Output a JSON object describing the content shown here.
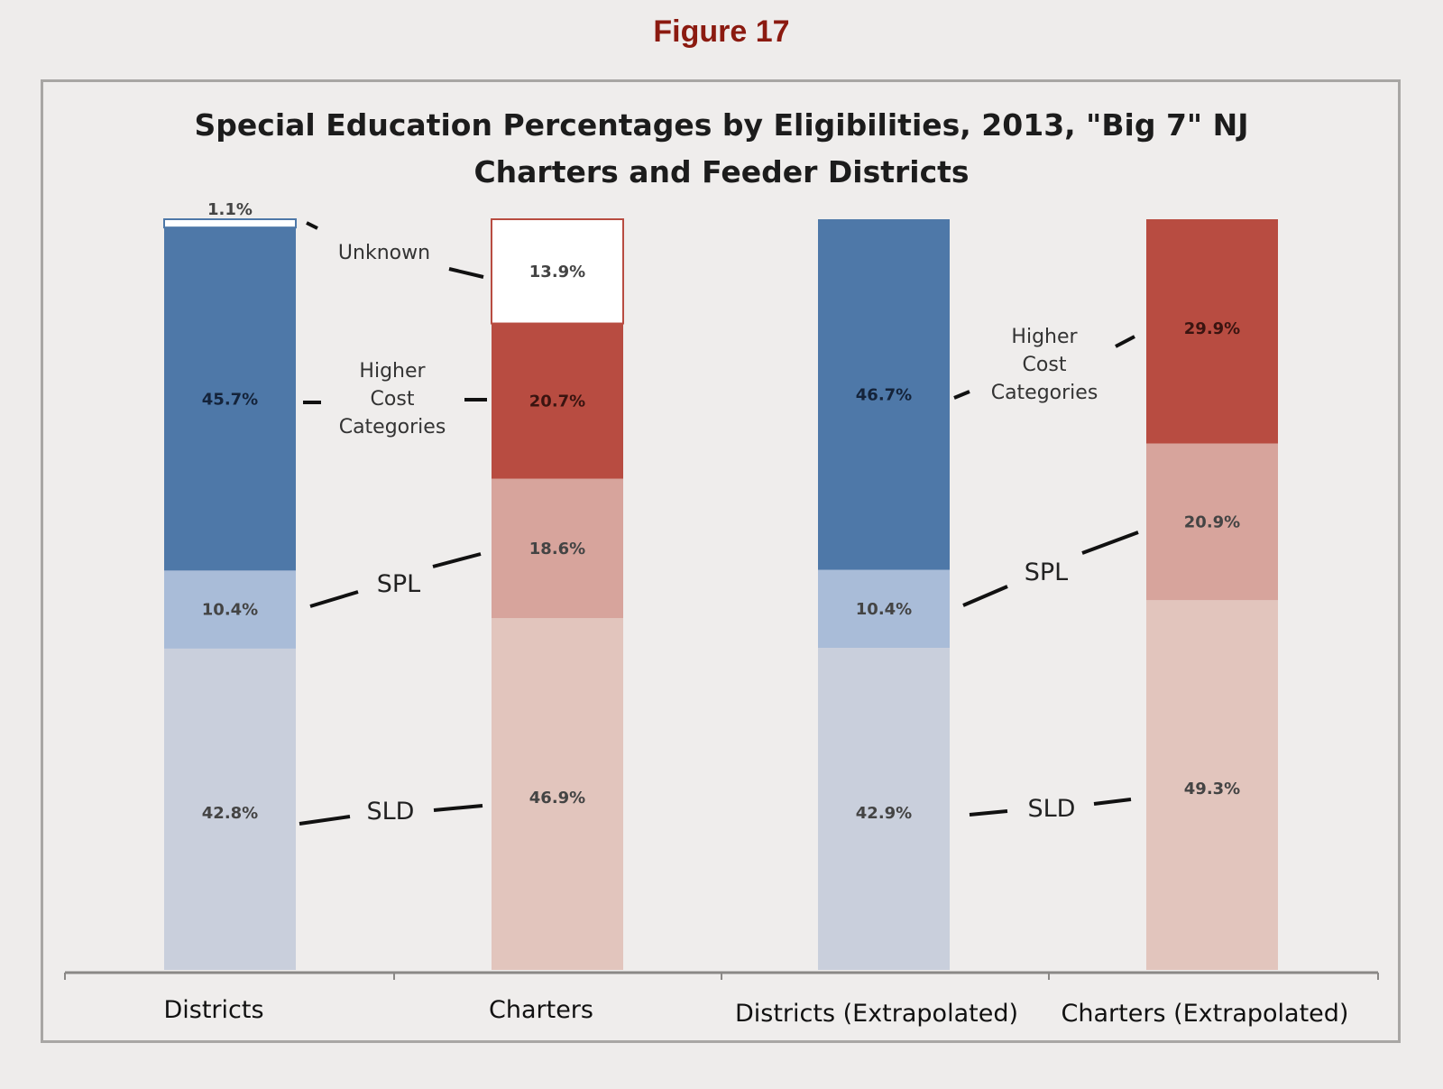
{
  "figure_label": "Figure 17",
  "chart_data": {
    "type": "bar",
    "stacked": true,
    "title": "Special Education Percentages by Eligibilities, 2013, \"Big 7\" NJ Charters and Feeder Districts",
    "title_lines": [
      "Special Education Percentages by Eligibilities, 2013, \"Big 7\" NJ",
      "Charters and Feeder Districts"
    ],
    "xlabel": "",
    "ylabel": "",
    "ylim": [
      0,
      100
    ],
    "grid": false,
    "categories": [
      "Districts",
      "Charters",
      "Districts (Extrapolated)",
      "Charters (Extrapolated)"
    ],
    "series": [
      {
        "name": "SLD",
        "values": [
          42.8,
          46.9,
          42.9,
          49.3
        ],
        "labels": [
          "42.8%",
          "46.9%",
          "42.9%",
          "49.3%"
        ]
      },
      {
        "name": "SPL",
        "values": [
          10.4,
          18.6,
          10.4,
          20.9
        ],
        "labels": [
          "10.4%",
          "18.6%",
          "10.4%",
          "20.9%"
        ]
      },
      {
        "name": "Higher Cost Categories",
        "values": [
          45.7,
          20.7,
          46.7,
          29.9
        ],
        "labels": [
          "45.7%",
          "20.7%",
          "46.7%",
          "29.9%"
        ]
      },
      {
        "name": "Unknown",
        "values": [
          1.1,
          13.9,
          0,
          0
        ],
        "labels": [
          "1.1%",
          "13.9%",
          "",
          ""
        ]
      }
    ],
    "colors": {
      "districts": {
        "SLD": "#c9cfdc",
        "SPL": "#a9bcd8",
        "Higher Cost Categories": "#4e78a8",
        "Unknown": "#ffffff"
      },
      "charters": {
        "SLD": "#e2c5bd",
        "SPL": "#d7a49c",
        "Higher Cost Categories": "#b84c41",
        "Unknown": "#ffffff"
      }
    },
    "annotations": {
      "unknown": "Unknown",
      "higher_cost": [
        "Higher",
        "Cost",
        "Categories"
      ],
      "spl": "SPL",
      "sld": "SLD"
    }
  }
}
